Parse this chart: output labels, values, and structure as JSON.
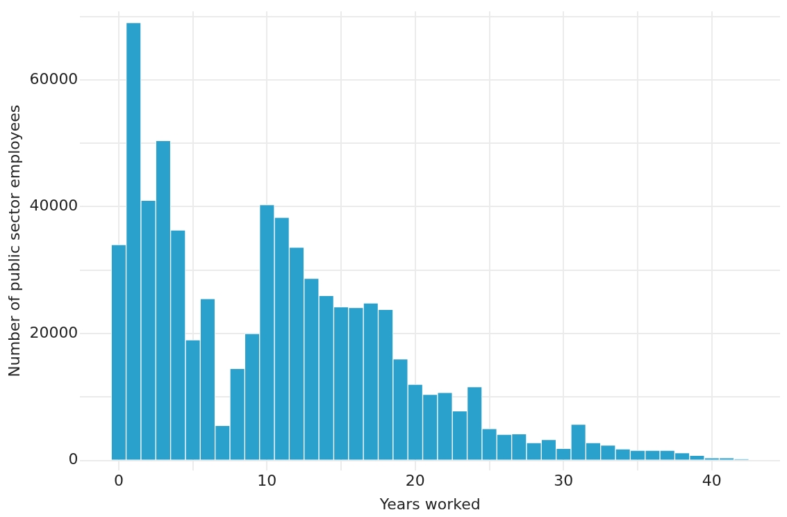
{
  "chart_data": {
    "type": "histogram",
    "xlabel": "Years worked",
    "ylabel": "Number of public sector employees",
    "bins": [
      -0.5,
      0.5,
      1.5,
      2.5,
      3.5,
      4.5,
      5.5,
      6.5,
      7.5,
      8.5,
      9.5,
      10.5,
      11.5,
      12.5,
      13.5,
      14.5,
      15.5,
      16.5,
      17.5,
      18.5,
      19.5,
      20.5,
      21.5,
      22.5,
      23.5,
      24.5,
      25.5,
      26.5,
      27.5,
      28.5,
      29.5,
      30.5,
      31.5,
      32.5,
      33.5,
      34.5,
      35.5,
      36.5,
      37.5,
      38.5,
      39.5,
      40.5,
      41.5,
      42.5
    ],
    "values": [
      34000,
      69000,
      41000,
      50400,
      36300,
      19000,
      25500,
      5500,
      14500,
      20000,
      40300,
      38300,
      33600,
      28700,
      26000,
      24200,
      24100,
      24800,
      23800,
      16000,
      12000,
      10400,
      10700,
      7800,
      11600,
      5000,
      4100,
      4200,
      2800,
      3300,
      1900,
      5700,
      2800,
      2400,
      1800,
      1600,
      1600,
      1600,
      1200,
      800,
      400,
      400,
      200
    ],
    "color": "#2aa1cc",
    "xlim": [
      -2.6,
      44.6
    ],
    "xticks": [
      0,
      {
        "value": 5,
        "label": null
      },
      10,
      {
        "value": 15,
        "label": null
      },
      20,
      {
        "value": 25,
        "label": null
      },
      30,
      {
        "value": 35,
        "label": null
      },
      40
    ],
    "ylim": [
      -1600,
      70800
    ],
    "yticks": [
      0,
      {
        "value": 10000,
        "label": null
      },
      20000,
      {
        "value": 30000,
        "label": null
      },
      40000,
      {
        "value": 50000,
        "label": null
      },
      60000,
      {
        "value": 70000,
        "label": null
      }
    ],
    "grid": true
  }
}
